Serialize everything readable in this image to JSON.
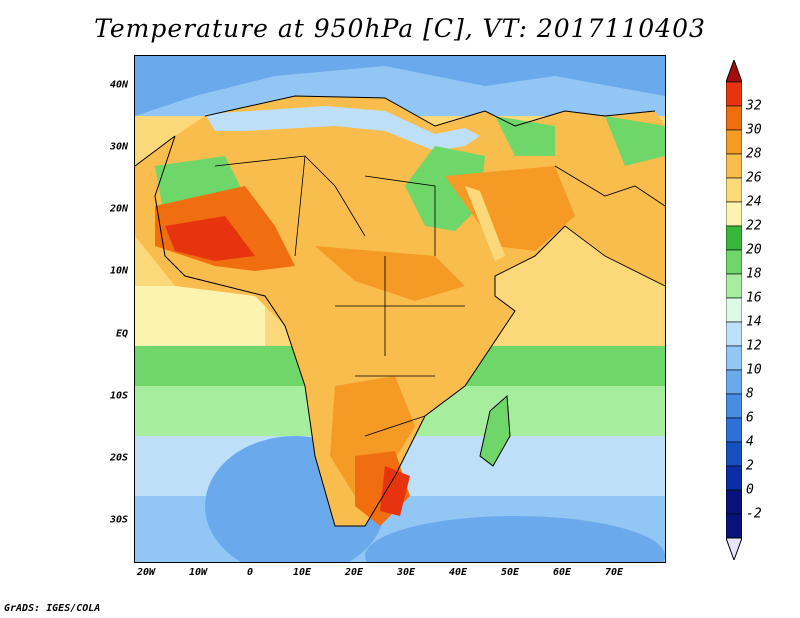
{
  "title": "Temperature at 950hPa [C], VT: 2017110403",
  "credit": "GrADS: IGES/COLA",
  "map": {
    "lat_labels": [
      "40N",
      "30N",
      "20N",
      "10N",
      "EQ",
      "10S",
      "20S",
      "30S"
    ],
    "lat_values": [
      40,
      30,
      20,
      10,
      0,
      -10,
      -20,
      -30
    ],
    "lon_labels": [
      "20W",
      "10W",
      "0",
      "10E",
      "20E",
      "30E",
      "40E",
      "50E",
      "60E",
      "70E"
    ],
    "lon_values": [
      -20,
      -10,
      0,
      10,
      20,
      30,
      40,
      50,
      60,
      70
    ],
    "extent": {
      "lon_min": -22,
      "lon_max": 80,
      "lat_min": -37,
      "lat_max": 45
    }
  },
  "colorbar": {
    "labels": [
      "32",
      "30",
      "28",
      "26",
      "24",
      "22",
      "20",
      "18",
      "16",
      "14",
      "12",
      "10",
      "8",
      "6",
      "4",
      "2",
      "0",
      "-2"
    ],
    "colors": [
      "#a50d0d",
      "#e8340e",
      "#f06e10",
      "#f59a25",
      "#f8bd4d",
      "#fbd97a",
      "#fdf3b0",
      "#37b83a",
      "#6fd66a",
      "#a6ee9d",
      "#dcfae6",
      "#bde0f8",
      "#92c6f4",
      "#6aa9ec",
      "#478ee3",
      "#2c71d8",
      "#1650c0",
      "#0a2ea6",
      "#07137a",
      "#ebeaff"
    ],
    "over_color": "#a50d0d",
    "under_color": "#e8e6ff"
  }
}
